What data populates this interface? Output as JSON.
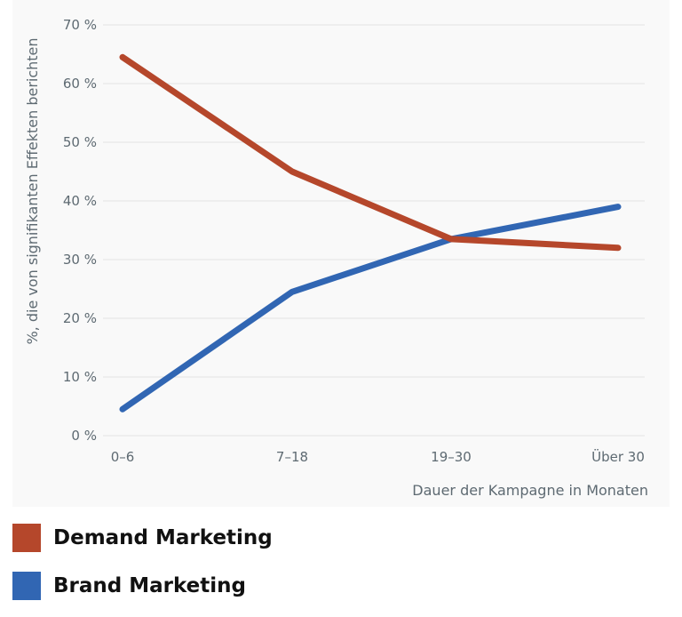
{
  "chart_data": {
    "type": "line",
    "categories": [
      "0–6",
      "7–18",
      "19–30",
      "Über 30"
    ],
    "series": [
      {
        "name": "Demand Marketing",
        "values": [
          64.5,
          45,
          33.5,
          32
        ],
        "color": "#b5472b"
      },
      {
        "name": "Brand Marketing",
        "values": [
          4.5,
          24.5,
          33.5,
          39
        ],
        "color": "#3166b3"
      }
    ],
    "y_ticks": [
      "0 %",
      "10 %",
      "20 %",
      "30 %",
      "40 %",
      "50 %",
      "60 %",
      "70 %"
    ],
    "ylim": [
      0,
      70
    ],
    "xlabel": "Dauer der Kampagne in Monaten",
    "ylabel": "%, die von signifikanten Effekten berichten",
    "grid": true,
    "legend_position": "bottom-left"
  },
  "legend": {
    "items": [
      {
        "label": "Demand Marketing",
        "color": "#b5472b"
      },
      {
        "label": "Brand Marketing",
        "color": "#3166b3"
      }
    ]
  }
}
